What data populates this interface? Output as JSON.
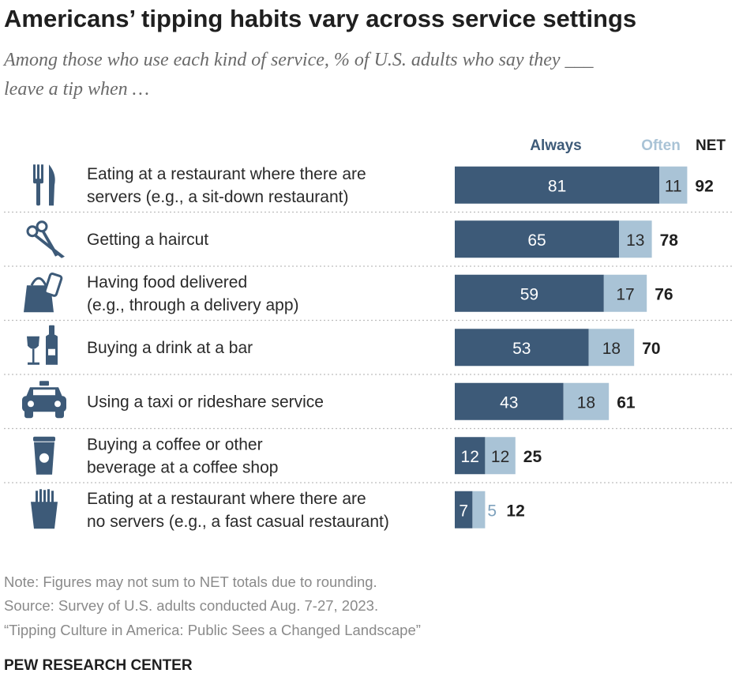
{
  "title": "Americans’ tipping habits vary across service settings",
  "subtitle_line1": "Among those who use each kind of service, % of U.S. adults who say they ___",
  "subtitle_line2": "leave a tip when …",
  "legend": {
    "always": "Always",
    "often": "Often",
    "net": "NET"
  },
  "colors": {
    "always": "#3d5a78",
    "often": "#a9c3d6",
    "text": "#1f1f1f",
    "note": "#8a8a8a"
  },
  "chart_data": {
    "type": "bar",
    "orientation": "horizontal",
    "stacked": true,
    "title": "Americans’ tipping habits vary across service settings",
    "subtitle": "Among those who use each kind of service, % of U.S. adults who say they ___ leave a tip when …",
    "series": [
      {
        "name": "Always",
        "values": [
          81,
          65,
          59,
          53,
          43,
          12,
          7
        ]
      },
      {
        "name": "Often",
        "values": [
          11,
          13,
          17,
          18,
          18,
          12,
          5
        ]
      }
    ],
    "net": [
      92,
      78,
      76,
      70,
      61,
      25,
      12
    ],
    "rows": [
      {
        "icon": "fork-knife-icon",
        "label": [
          "Eating at a restaurant where there are",
          "servers (e.g., a sit-down restaurant)"
        ],
        "always": 81,
        "often": 11,
        "net": 92
      },
      {
        "icon": "scissors-icon",
        "label": [
          "Getting a haircut"
        ],
        "always": 65,
        "often": 13,
        "net": 78
      },
      {
        "icon": "delivery-bag-phone-icon",
        "label": [
          "Having food delivered",
          "(e.g., through a delivery app)"
        ],
        "always": 59,
        "often": 17,
        "net": 76
      },
      {
        "icon": "wine-bottle-glass-icon",
        "label": [
          "Buying a drink at a bar"
        ],
        "always": 53,
        "often": 18,
        "net": 70
      },
      {
        "icon": "taxi-icon",
        "label": [
          "Using a taxi or rideshare service"
        ],
        "always": 43,
        "often": 18,
        "net": 61
      },
      {
        "icon": "coffee-cup-icon",
        "label": [
          "Buying a coffee or other",
          "beverage at a coffee shop"
        ],
        "always": 12,
        "often": 12,
        "net": 25
      },
      {
        "icon": "fries-icon",
        "label": [
          "Eating at a restaurant where there are",
          "no servers (e.g., a fast casual restaurant)"
        ],
        "always": 7,
        "often": 5,
        "net": 12
      }
    ],
    "xlim": [
      0,
      100
    ],
    "legend_position": "top-right",
    "grid": false
  },
  "notes": [
    "Note: Figures may not sum to NET totals due to rounding.",
    "Source: Survey of U.S. adults conducted Aug. 7-27, 2023.",
    "“Tipping Culture in America: Public Sees a Changed Landscape”"
  ],
  "brand": "PEW RESEARCH CENTER"
}
